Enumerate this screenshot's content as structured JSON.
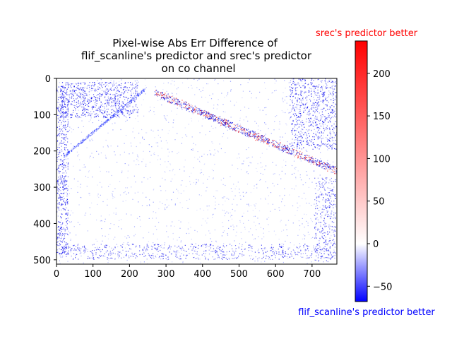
{
  "chart_data": {
    "type": "heatmap",
    "title_lines": [
      "Pixel-wise Abs Err Difference of",
      "flif_scanline's predictor and srec's predictor",
      "on co channel"
    ],
    "x_ticks": [
      "0",
      "100",
      "200",
      "300",
      "400",
      "500",
      "600",
      "700"
    ],
    "x_tick_values": [
      0,
      100,
      200,
      300,
      400,
      500,
      600,
      700
    ],
    "y_ticks": [
      "0",
      "100",
      "200",
      "300",
      "400",
      "500"
    ],
    "y_tick_values": [
      0,
      100,
      200,
      300,
      400,
      500
    ],
    "xlim": [
      0,
      768
    ],
    "ylim": [
      512,
      0
    ],
    "colorbar": {
      "range": [
        -68,
        238
      ],
      "ticks": [
        "200",
        "150",
        "100",
        "50",
        "0",
        "−50"
      ],
      "tick_values": [
        200,
        150,
        100,
        50,
        0,
        -50
      ],
      "label_top": "srec's predictor better",
      "label_bottom": "flif_scanline's predictor better",
      "color_max": "#ff0000",
      "color_zero": "#ffffff",
      "color_min": "#0000ff"
    }
  }
}
